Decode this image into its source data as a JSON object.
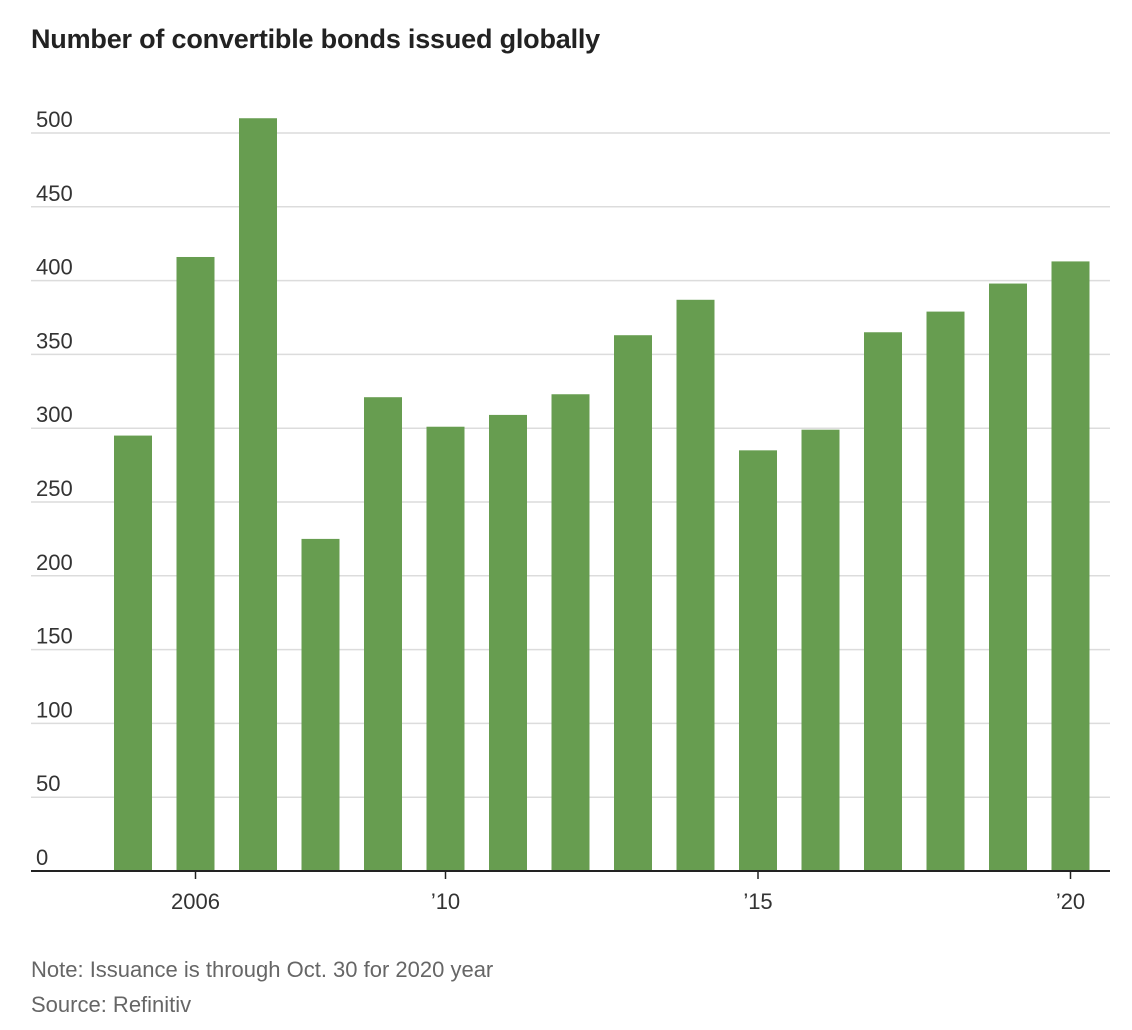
{
  "chart_data": {
    "type": "bar",
    "title": "Number of convertible bonds issued globally",
    "categories": [
      "2005",
      "2006",
      "2007",
      "2008",
      "2009",
      "2010",
      "2011",
      "2012",
      "2013",
      "2014",
      "2015",
      "2016",
      "2017",
      "2018",
      "2019",
      "2020"
    ],
    "x_tick_labels": [
      {
        "category": "2006",
        "label": "2006"
      },
      {
        "category": "2010",
        "label": "’10"
      },
      {
        "category": "2015",
        "label": "’15"
      },
      {
        "category": "2020",
        "label": "’20"
      }
    ],
    "values": [
      295,
      416,
      510,
      225,
      321,
      301,
      309,
      323,
      363,
      387,
      285,
      299,
      365,
      379,
      398,
      413
    ],
    "ylim": [
      0,
      500
    ],
    "yticks": [
      0,
      50,
      100,
      150,
      200,
      250,
      300,
      350,
      400,
      450,
      500
    ],
    "grid": true,
    "bar_color": "#679d50",
    "note": "Note: Issuance is through Oct. 30 for 2020 year",
    "source": "Source: Refinitiv"
  }
}
